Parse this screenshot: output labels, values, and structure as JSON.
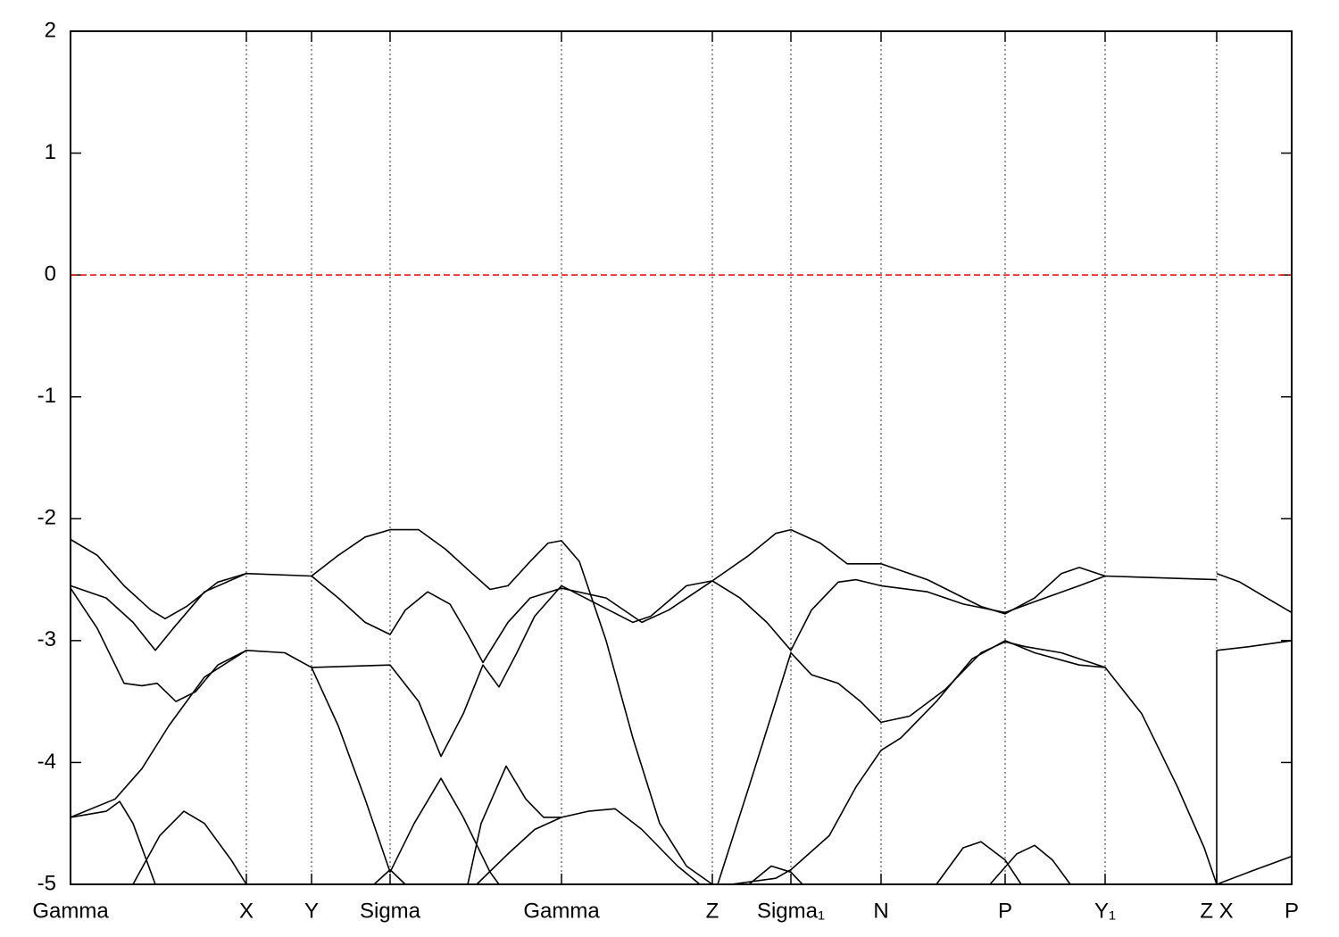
{
  "chart_data": {
    "type": "line",
    "xlim": [
      0,
      1368
    ],
    "ylim": [
      -5,
      2
    ],
    "yticks": [
      -5,
      -4,
      -3,
      -2,
      -1,
      0,
      1,
      2
    ],
    "xticks": [
      {
        "value": 0,
        "label": "Gamma"
      },
      {
        "value": 197,
        "label": "X"
      },
      {
        "value": 270,
        "label": "Y"
      },
      {
        "value": 358,
        "label": "Sigma"
      },
      {
        "value": 550,
        "label": "Gamma"
      },
      {
        "value": 719,
        "label": "Z"
      },
      {
        "value": 807,
        "label": "Sigma₁"
      },
      {
        "value": 908,
        "label": "N"
      },
      {
        "value": 1047,
        "label": "P"
      },
      {
        "value": 1159,
        "label": "Y₁"
      },
      {
        "value": 1284,
        "label": "Z X"
      },
      {
        "value": 1368,
        "label": "P"
      }
    ],
    "grid": true,
    "line_color": "#000000",
    "reference_line": {
      "value": 0,
      "color": "#e00000"
    },
    "series": [
      {
        "x": [
          0,
          30,
          60,
          90,
          106,
          130,
          165,
          197,
          270,
          300,
          330,
          358,
          390,
          420,
          450,
          470,
          490,
          515,
          535,
          550,
          570,
          600,
          630,
          660,
          690,
          719
        ],
        "values": [
          -2.17,
          -2.3,
          -2.55,
          -2.75,
          -2.82,
          -2.72,
          -2.52,
          -2.45,
          -2.47,
          -2.3,
          -2.15,
          -2.09,
          -2.09,
          -2.25,
          -2.45,
          -2.58,
          -2.55,
          -2.35,
          -2.2,
          -2.18,
          -2.35,
          -3.0,
          -3.8,
          -4.5,
          -4.85,
          -5.0
        ]
      },
      {
        "x": [
          0,
          40,
          70,
          95,
          115,
          150,
          197
        ],
        "values": [
          -2.55,
          -2.65,
          -2.85,
          -3.08,
          -2.9,
          -2.6,
          -2.45
        ]
      },
      {
        "x": [
          0,
          30,
          60,
          80,
          97,
          118,
          140,
          165,
          197,
          240,
          270,
          358,
          390,
          415,
          440,
          462,
          480,
          500,
          520,
          550,
          590,
          630,
          650,
          690,
          719,
          750,
          780,
          807,
          830,
          860,
          880,
          908,
          960,
          1000,
          1047,
          1080,
          1130,
          1159,
          1284
        ],
        "values": [
          -2.57,
          -2.9,
          -3.35,
          -3.37,
          -3.35,
          -3.5,
          -3.42,
          -3.2,
          -3.08,
          -3.1,
          -3.22,
          -3.2,
          -3.5,
          -3.95,
          -3.6,
          -3.2,
          -3.38,
          -3.1,
          -2.8,
          -2.55,
          -2.7,
          -2.85,
          -2.8,
          -2.55,
          -2.51,
          -2.65,
          -2.85,
          -3.08,
          -2.75,
          -2.52,
          -2.5,
          -2.55,
          -2.6,
          -2.7,
          -2.77,
          -2.68,
          -2.55,
          -2.47,
          -2.5
        ]
      },
      {
        "x": [
          270,
          300,
          330,
          358,
          375,
          400,
          425,
          445,
          462,
          490,
          515,
          550,
          600,
          640,
          670,
          719
        ],
        "values": [
          -2.47,
          -2.65,
          -2.85,
          -2.95,
          -2.75,
          -2.6,
          -2.7,
          -2.95,
          -3.18,
          -2.85,
          -2.65,
          -2.57,
          -2.65,
          -2.85,
          -2.75,
          -2.51
        ]
      },
      {
        "x": [
          0,
          50,
          80,
          110,
          150,
          197
        ],
        "values": [
          -4.45,
          -4.3,
          -4.05,
          -3.7,
          -3.3,
          -3.08
        ]
      },
      {
        "x": [
          0,
          40,
          55,
          70,
          95
        ],
        "values": [
          -4.45,
          -4.4,
          -4.32,
          -4.5,
          -5.0
        ]
      },
      {
        "x": [
          70,
          100,
          127,
          150,
          180,
          197
        ],
        "values": [
          -5.0,
          -4.6,
          -4.4,
          -4.5,
          -4.8,
          -5.0
        ]
      },
      {
        "x": [
          270,
          300,
          330,
          358,
          385,
          415,
          440,
          470,
          480
        ],
        "values": [
          -3.22,
          -3.7,
          -4.3,
          -4.9,
          -4.5,
          -4.13,
          -4.45,
          -4.9,
          -5.0
        ]
      },
      {
        "x": [
          340,
          358,
          375
        ],
        "values": [
          -5.0,
          -4.88,
          -5.0
        ]
      },
      {
        "x": [
          445,
          460,
          488,
          510,
          530,
          550,
          580,
          610,
          640,
          680,
          705
        ],
        "values": [
          -5.0,
          -4.5,
          -4.03,
          -4.3,
          -4.45,
          -4.45,
          -4.4,
          -4.38,
          -4.55,
          -4.85,
          -5.0
        ]
      },
      {
        "x": [
          455,
          490,
          520,
          550
        ],
        "values": [
          -5.0,
          -4.75,
          -4.55,
          -4.45
        ]
      },
      {
        "x": [
          725,
          760,
          790,
          807,
          830,
          860,
          885,
          908,
          940,
          980,
          1020,
          1047,
          1070,
          1110,
          1159,
          1200,
          1240,
          1270,
          1284
        ],
        "values": [
          -5.0,
          -4.2,
          -3.5,
          -3.1,
          -3.28,
          -3.35,
          -3.5,
          -3.67,
          -3.62,
          -3.4,
          -3.1,
          -3.01,
          -3.05,
          -3.1,
          -3.22,
          -3.6,
          -4.2,
          -4.7,
          -5.0
        ]
      },
      {
        "x": [
          740,
          790,
          807,
          850,
          880,
          908,
          930,
          970,
          1010,
          1047,
          1080,
          1130,
          1159
        ],
        "values": [
          -5.0,
          -4.95,
          -4.88,
          -4.6,
          -4.2,
          -3.9,
          -3.8,
          -3.5,
          -3.15,
          -3.0,
          -3.1,
          -3.2,
          -3.22
        ]
      },
      {
        "x": [
          807,
          840,
          870,
          908,
          960,
          1020,
          1047,
          1080,
          1110,
          1130,
          1159
        ],
        "values": [
          -2.09,
          -2.2,
          -2.37,
          -2.37,
          -2.5,
          -2.72,
          -2.78,
          -2.65,
          -2.45,
          -2.4,
          -2.47
        ]
      },
      {
        "x": [
          719,
          760,
          790,
          807
        ],
        "values": [
          -2.51,
          -2.3,
          -2.12,
          -2.09
        ]
      },
      {
        "x": [
          760,
          785,
          807,
          820
        ],
        "values": [
          -5.0,
          -4.85,
          -4.9,
          -5.0
        ]
      },
      {
        "x": [
          970,
          1000,
          1020,
          1047,
          1065
        ],
        "values": [
          -5.0,
          -4.7,
          -4.65,
          -4.8,
          -5.0
        ]
      },
      {
        "x": [
          1030,
          1060,
          1080,
          1100,
          1120
        ],
        "values": [
          -5.0,
          -4.75,
          -4.68,
          -4.8,
          -5.0
        ]
      },
      {
        "x": [
          1284,
          1310,
          1340,
          1368
        ],
        "values": [
          -2.45,
          -2.52,
          -2.65,
          -2.77
        ]
      },
      {
        "x": [
          1284,
          1320,
          1368
        ],
        "values": [
          -3.08,
          -3.05,
          -3.0
        ]
      },
      {
        "x": [
          1284,
          1320,
          1368
        ],
        "values": [
          -5.0,
          -4.9,
          -4.77
        ]
      },
      {
        "x": [
          1284,
          1284
        ],
        "values": [
          -3.08,
          -5.0
        ]
      }
    ]
  }
}
